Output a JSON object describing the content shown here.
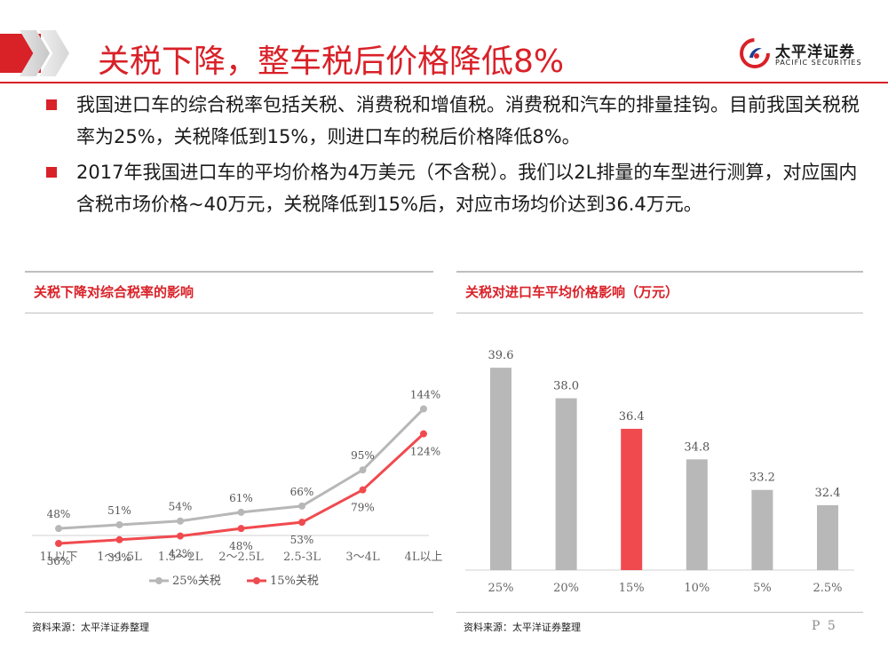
{
  "header": {
    "title": "关税下降，整车税后价格降低8%",
    "logo": {
      "name_cn": "太平洋证券",
      "name_en": "PACIFIC SECURITIES"
    }
  },
  "colors": {
    "accent": "#d92128",
    "series_25": "#b7b7b7",
    "series_15": "#f04a4f",
    "bar_gray": "#b8b8b8",
    "bar_highlight": "#f04a4f"
  },
  "bullets": [
    "我国进口车的综合税率包括关税、消费税和增值税。消费税和汽车的排量挂钩。目前我国关税税率为25%，关税降低到15%，则进口车的税后价格降低8%。",
    "2017年我国进口车的平均价格为4万美元（不含税）。我们以2L排量的车型进行测算，对应国内含税市场价格~40万元，关税降低到15%后，对应市场均价达到36.4万元。"
  ],
  "left_panel": {
    "title": "关税下降对综合税率的影响",
    "source": "资料来源：太平洋证券整理"
  },
  "right_panel": {
    "title": "关税对进口车平均价格影响（万元）",
    "source": "资料来源：太平洋证券整理"
  },
  "page_number": "P 5",
  "chart_data": [
    {
      "type": "line",
      "title": "关税下降对综合税率的影响",
      "categories": [
        "1L以下",
        "1～1.5L",
        "1.5～2L",
        "2～2.5L",
        "2.5-3L",
        "3～4L",
        "4L以上"
      ],
      "series": [
        {
          "name": "25%关税",
          "values": [
            48,
            51,
            54,
            61,
            66,
            95,
            144
          ],
          "labels": [
            "48%",
            "51%",
            "54%",
            "61%",
            "66%",
            "95%",
            "144%"
          ]
        },
        {
          "name": "15%关税",
          "values": [
            36,
            39,
            42,
            48,
            53,
            79,
            124
          ],
          "labels": [
            "36%",
            "39%",
            "42%",
            "48%",
            "53%",
            "79%",
            "124%"
          ]
        }
      ],
      "legend": "bottom",
      "grid": false
    },
    {
      "type": "bar",
      "title": "关税对进口车平均价格影响（万元）",
      "categories": [
        "25%",
        "20%",
        "15%",
        "10%",
        "5%",
        "2.5%"
      ],
      "values": [
        39.6,
        38.0,
        36.4,
        34.8,
        33.2,
        32.4
      ],
      "labels": [
        "39.6",
        "38.0",
        "36.4",
        "34.8",
        "33.2",
        "32.4"
      ],
      "highlight_index": 2,
      "grid": false
    }
  ]
}
